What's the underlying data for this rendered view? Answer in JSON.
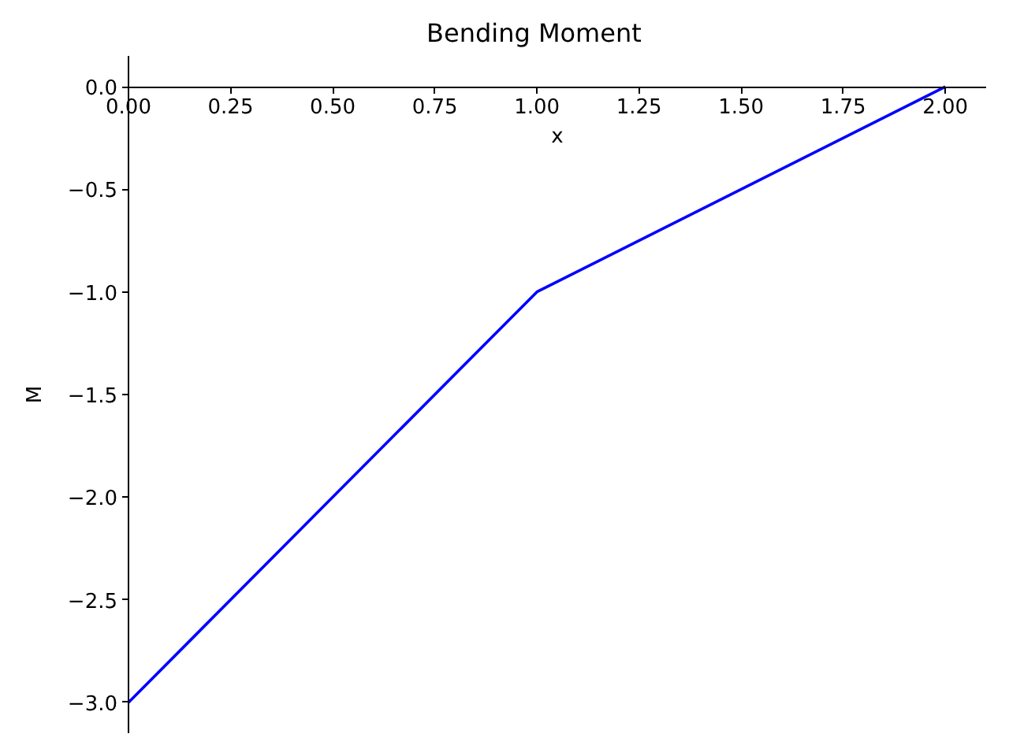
{
  "chart_data": {
    "type": "line",
    "title": "Bending Moment",
    "xlabel": "x",
    "ylabel": "M",
    "x": [
      0,
      1,
      2
    ],
    "series": [
      {
        "color": "#0000ff",
        "values": [
          -3,
          -1,
          0
        ]
      }
    ],
    "xlim": [
      0,
      2.1
    ],
    "ylim": [
      -3.15,
      0.15
    ],
    "xticks": [
      {
        "value": 0,
        "label": "0.00"
      },
      {
        "value": 0.25,
        "label": "0.25"
      },
      {
        "value": 0.5,
        "label": "0.50"
      },
      {
        "value": 0.75,
        "label": "0.75"
      },
      {
        "value": 1,
        "label": "1.00"
      },
      {
        "value": 1.25,
        "label": "1.25"
      },
      {
        "value": 1.5,
        "label": "1.50"
      },
      {
        "value": 1.75,
        "label": "1.75"
      },
      {
        "value": 2,
        "label": "2.00"
      }
    ],
    "yticks": [
      {
        "value": 0,
        "label": "0.0"
      },
      {
        "value": -0.5,
        "label": "−0.5"
      },
      {
        "value": -1,
        "label": "−1.0"
      },
      {
        "value": -1.5,
        "label": "−1.5"
      },
      {
        "value": -2,
        "label": "−2.0"
      },
      {
        "value": -2.5,
        "label": "−2.5"
      },
      {
        "value": -3,
        "label": "−3.0"
      }
    ],
    "grid": false
  }
}
